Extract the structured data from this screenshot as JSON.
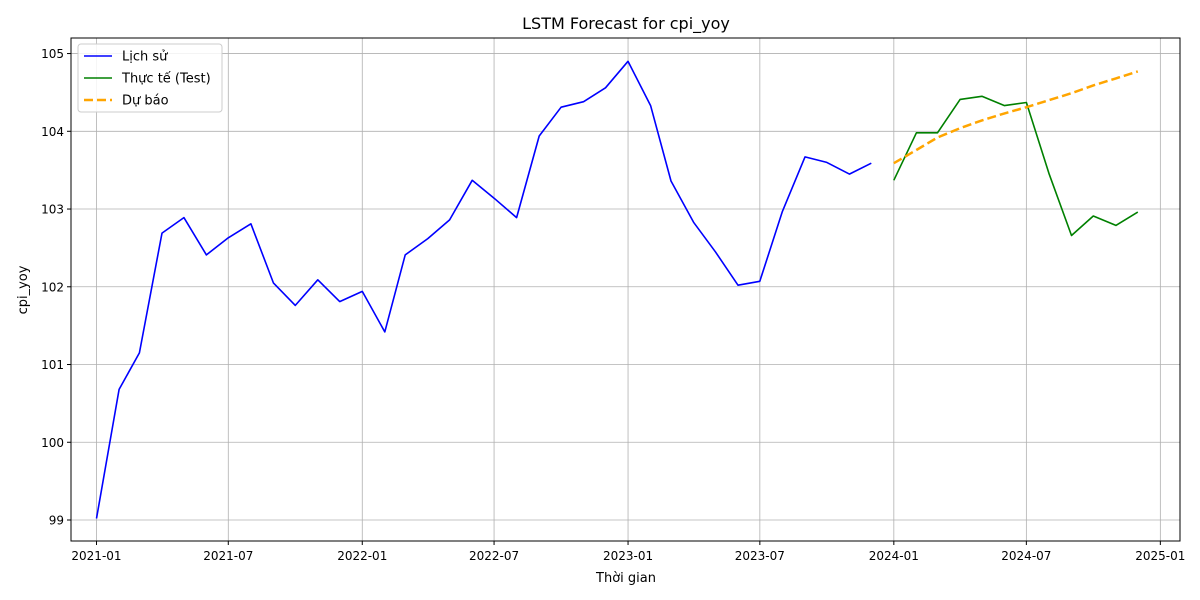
{
  "chart_data": {
    "type": "line",
    "title": "LSTM Forecast for cpi_yoy",
    "xlabel": "Thời gian",
    "ylabel": "cpi_yoy",
    "ylim": [
      98.73,
      105.2
    ],
    "xlim": [
      "2020-11-27",
      "2025-01-28"
    ],
    "grid": true,
    "legend_position": "top-left",
    "x_ticks": [
      "2021-01",
      "2021-07",
      "2022-01",
      "2022-07",
      "2023-01",
      "2023-07",
      "2024-01",
      "2024-07",
      "2025-01"
    ],
    "y_ticks": [
      99,
      100,
      101,
      102,
      103,
      104,
      105
    ],
    "series": [
      {
        "name": "Lịch sử",
        "color": "#0000ff",
        "style": "solid",
        "x": [
          "2021-01",
          "2021-02",
          "2021-03",
          "2021-04",
          "2021-05",
          "2021-06",
          "2021-07",
          "2021-08",
          "2021-09",
          "2021-10",
          "2021-11",
          "2021-12",
          "2022-01",
          "2022-02",
          "2022-03",
          "2022-04",
          "2022-05",
          "2022-06",
          "2022-07",
          "2022-08",
          "2022-09",
          "2022-10",
          "2022-11",
          "2022-12",
          "2023-01",
          "2023-02",
          "2023-03",
          "2023-04",
          "2023-05",
          "2023-06",
          "2023-07",
          "2023-08",
          "2023-09",
          "2023-10",
          "2023-11",
          "2023-12"
        ],
        "values": [
          99.02,
          100.68,
          101.15,
          102.69,
          102.89,
          102.41,
          102.63,
          102.81,
          102.05,
          101.76,
          102.09,
          101.81,
          101.94,
          101.42,
          102.41,
          102.62,
          102.86,
          103.37,
          103.14,
          102.89,
          103.94,
          104.31,
          104.38,
          104.56,
          104.9,
          104.33,
          103.36,
          102.83,
          102.45,
          102.02,
          102.07,
          102.97,
          103.67,
          103.6,
          103.45,
          103.59
        ]
      },
      {
        "name": "Thực tế (Test)",
        "color": "#008000",
        "style": "solid",
        "x": [
          "2024-01",
          "2024-02",
          "2024-03",
          "2024-04",
          "2024-05",
          "2024-06",
          "2024-07",
          "2024-08",
          "2024-09",
          "2024-10",
          "2024-11",
          "2024-12"
        ],
        "values": [
          103.37,
          103.98,
          103.98,
          104.41,
          104.45,
          104.33,
          104.37,
          103.46,
          102.66,
          102.91,
          102.79,
          102.96
        ]
      },
      {
        "name": "Dự báo",
        "color": "#ffa500",
        "style": "dashed",
        "x": [
          "2024-01",
          "2024-02",
          "2024-03",
          "2024-04",
          "2024-05",
          "2024-06",
          "2024-07",
          "2024-08",
          "2024-09",
          "2024-10",
          "2024-11",
          "2024-12"
        ],
        "values": [
          103.59,
          103.76,
          103.92,
          104.04,
          104.14,
          104.23,
          104.31,
          104.4,
          104.49,
          104.59,
          104.68,
          104.77
        ]
      }
    ]
  }
}
